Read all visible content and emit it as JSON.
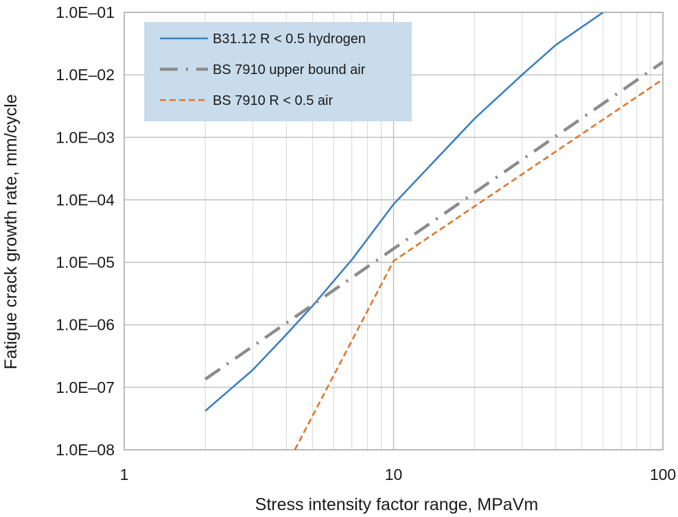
{
  "chart_data": {
    "type": "line",
    "xscale": "log",
    "yscale": "log",
    "xlim": [
      1,
      100
    ],
    "ylim": [
      1e-08,
      0.1
    ],
    "grid": true,
    "legend_position": "top-left",
    "xlabel": "Stress intensity factor range, MPaVm",
    "ylabel": "Fatigue crack growth rate, mm/cycle",
    "x_ticks": [
      {
        "value": 1,
        "label": "1"
      },
      {
        "value": 10,
        "label": "10"
      },
      {
        "value": 100,
        "label": "100"
      }
    ],
    "y_ticks": [
      {
        "value": 1e-08,
        "label": "1.0E–08"
      },
      {
        "value": 1e-07,
        "label": "1.0E–07"
      },
      {
        "value": 1e-06,
        "label": "1.0E–06"
      },
      {
        "value": 1e-05,
        "label": "1.0E–05"
      },
      {
        "value": 0.0001,
        "label": "1.0E–04"
      },
      {
        "value": 0.001,
        "label": "1.0E–03"
      },
      {
        "value": 0.01,
        "label": "1.0E–02"
      },
      {
        "value": 0.1,
        "label": "1.0E–01"
      }
    ],
    "series": [
      {
        "name": "B31.12 R < 0.5 hydrogen",
        "color": "#3a7fc1",
        "dash": "solid",
        "points": [
          [
            2,
            4.2e-08
          ],
          [
            3,
            1.9e-07
          ],
          [
            4,
            7e-07
          ],
          [
            5,
            2e-06
          ],
          [
            7,
            1.1e-05
          ],
          [
            10,
            8.5e-05
          ],
          [
            20,
            0.002
          ],
          [
            30,
            0.01
          ],
          [
            40,
            0.03
          ],
          [
            60,
            0.1
          ]
        ]
      },
      {
        "name": "BS 7910 upper bound air",
        "color": "#8c8c8c",
        "dash": "dash-dot",
        "points": [
          [
            2,
            1.35e-07
          ],
          [
            100,
            0.016
          ]
        ]
      },
      {
        "name": "BS 7910 R < 0.5 air",
        "color": "#e0742a",
        "dash": "dashed",
        "points": [
          [
            4.3,
            1e-08
          ],
          [
            10,
            1.05e-05
          ],
          [
            100,
            0.0085
          ]
        ]
      }
    ]
  }
}
